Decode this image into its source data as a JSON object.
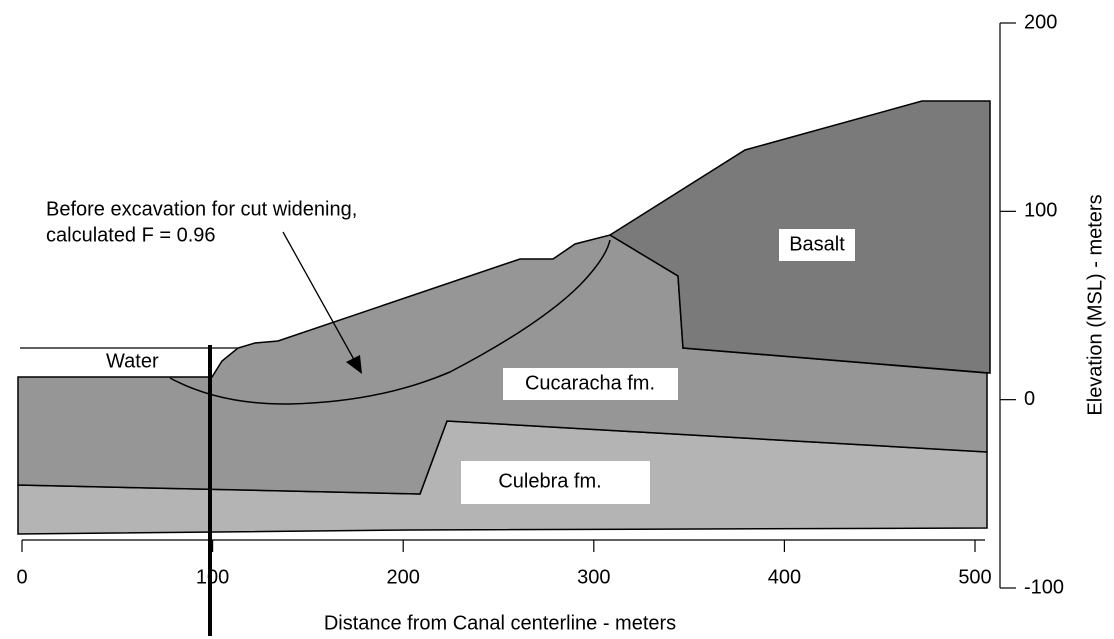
{
  "figure": {
    "annotation": [
      "Before excavation for cut widening,",
      "calculated F = 0.96"
    ],
    "labels": {
      "water": "Water",
      "basalt": "Basalt",
      "cucaracha": "Cucaracha fm.",
      "culebra": "Culebra fm."
    },
    "x_axis": {
      "title": "Distance from Canal centerline - meters",
      "ticks": [
        0,
        100,
        200,
        300,
        400,
        500
      ]
    },
    "y_axis": {
      "title": "Elevation (MSL) - meters",
      "ticks": [
        200,
        100,
        0,
        -100
      ]
    }
  }
}
